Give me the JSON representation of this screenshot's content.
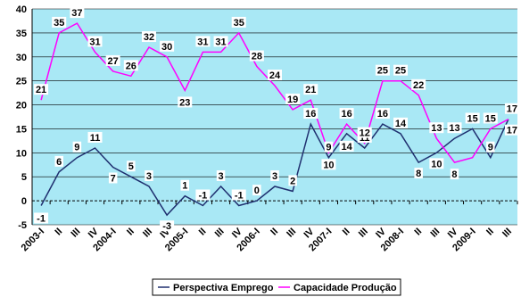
{
  "chart_data": {
    "type": "line",
    "categories": [
      "2003-I",
      "II",
      "III",
      "IV",
      "2004-I",
      "II",
      "III",
      "IV",
      "2005-I",
      "II",
      "III",
      "IV",
      "2006-I",
      "II",
      "III",
      "IV",
      "2007-I",
      "II",
      "III",
      "IV",
      "2008-I",
      "II",
      "III",
      "IV",
      "2009-I",
      "II",
      "III"
    ],
    "series": [
      {
        "name": "Perspectiva Emprego",
        "color": "#1f2f6f",
        "values": [
          -1,
          6,
          9,
          11,
          7,
          5,
          3,
          -3,
          1,
          -1,
          3,
          -1,
          0,
          3,
          2,
          16,
          9,
          14,
          11,
          16,
          14,
          8,
          10,
          13,
          15,
          9,
          17
        ],
        "labels": [
          "-1",
          "6",
          "9",
          "11",
          "7",
          "5",
          "3",
          "-3",
          "1",
          "-1",
          "3",
          "-1",
          "0",
          "3",
          "2",
          "16",
          "9",
          "14",
          "11",
          "16",
          "14",
          "8",
          "10",
          "13",
          "15",
          "9",
          "17"
        ]
      },
      {
        "name": "Capacidade Produção",
        "color": "#ff00ff",
        "values": [
          21,
          35,
          37,
          31,
          27,
          26,
          32,
          30,
          23,
          31,
          31,
          35,
          28,
          24,
          19,
          21,
          10,
          16,
          12,
          25,
          25,
          22,
          13,
          8,
          9,
          15,
          17
        ],
        "labels": [
          "21",
          "35",
          "37",
          "31",
          "27",
          "26",
          "32",
          "30",
          "23",
          "31",
          "31",
          "35",
          "28",
          "24",
          "19",
          "21",
          "10",
          "16",
          "12",
          "25",
          "25",
          "22",
          "13",
          "8",
          "",
          "15",
          "17"
        ]
      }
    ],
    "yticks": [
      "-5",
      "0",
      "5",
      "10",
      "15",
      "20",
      "25",
      "30",
      "35",
      "40"
    ],
    "ylim": [
      -5,
      40
    ],
    "grid": true,
    "legend_position": "bottom"
  }
}
